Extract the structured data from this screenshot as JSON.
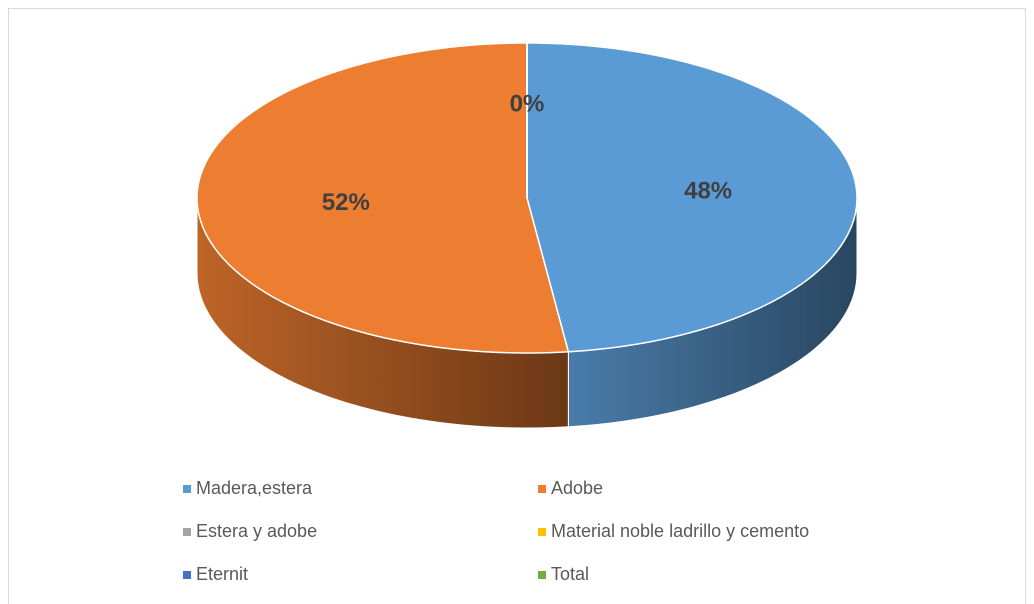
{
  "chart_data": {
    "type": "pie",
    "categories": [
      "Madera,estera",
      "Adobe",
      "Estera y adobe",
      "Material noble ladrillo y cemento",
      "Eternit",
      "Total"
    ],
    "values": [
      48,
      52,
      0,
      0,
      0,
      0
    ],
    "value_labels": [
      "48%",
      "52%",
      "0%",
      null,
      null,
      null
    ],
    "colors": [
      "#5b9bd5",
      "#ed7d31",
      "#a5a5a5",
      "#ffc000",
      "#4472c4",
      "#70ad47"
    ],
    "legend": "bottom"
  }
}
